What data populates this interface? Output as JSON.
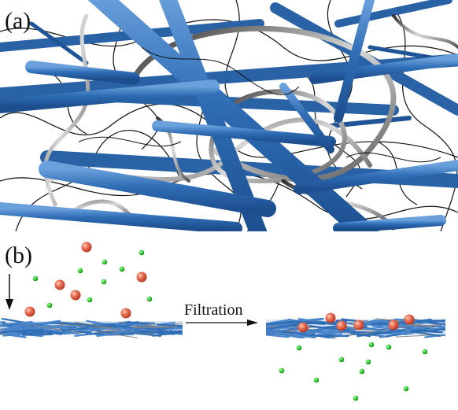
{
  "panel_a": {
    "label": "(a)"
  },
  "panel_b": {
    "label": "(b)"
  },
  "process": {
    "arrow_label": "Filtration"
  },
  "colors": {
    "fiber": "#2f6db5",
    "fiber_light": "#5b93d3",
    "ribbon_dark": "#3a3a3a",
    "ribbon_light": "#c8c8c8",
    "thin_wire": "#111111",
    "large_particle": "#e0523c",
    "small_particle": "#2cc22c"
  }
}
